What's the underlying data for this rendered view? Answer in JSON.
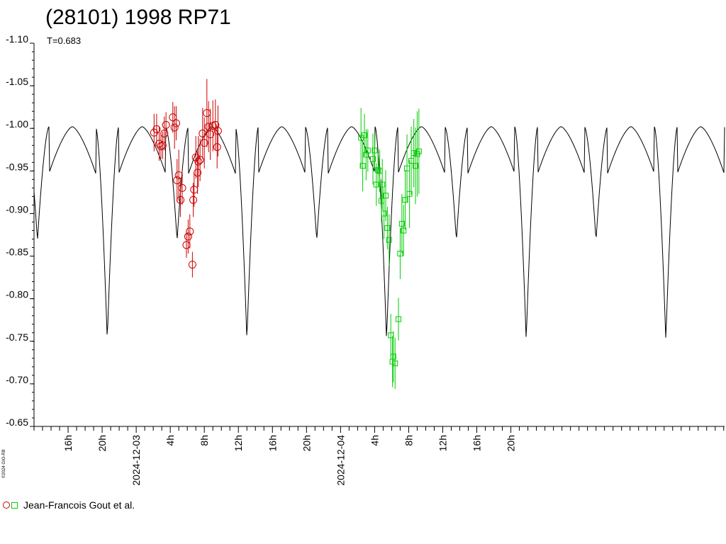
{
  "chart_data": {
    "type": "scatter",
    "title": "(28101) 1998 RP71",
    "subtitle": "T=0.683",
    "copyright": "©2024 GIO-RB",
    "ylim": [
      -1.1,
      -0.65
    ],
    "y_inverted": true,
    "yticks": [
      "-1.10",
      "-1.05",
      "-1.00",
      "-0.95",
      "-0.90",
      "-0.85",
      "-0.80",
      "-0.75",
      "-0.70",
      "-0.65"
    ],
    "xlim_hours": [
      12.0,
      93.1
    ],
    "xticks": [
      {
        "h": 16,
        "label": "16h"
      },
      {
        "h": 20,
        "label": "20h"
      },
      {
        "h": 24,
        "label": "2024-12-03"
      },
      {
        "h": 28,
        "label": "4h"
      },
      {
        "h": 32,
        "label": "8h"
      },
      {
        "h": 36,
        "label": "12h"
      },
      {
        "h": 40,
        "label": "16h"
      },
      {
        "h": 44,
        "label": "20h"
      },
      {
        "h": 48,
        "label": "2024-12-04"
      },
      {
        "h": 52,
        "label": "4h"
      },
      {
        "h": 56,
        "label": "8h"
      },
      {
        "h": 60,
        "label": "12h"
      },
      {
        "h": 64,
        "label": "16h"
      },
      {
        "h": 68,
        "label": "20h"
      }
    ],
    "model": {
      "period_hours": 16.4,
      "max_mag": -1.002,
      "min_deep": -0.751,
      "min_shallow": -0.868,
      "deep_min_hours": [
        20.6,
        37.0,
        53.4
      ],
      "shallow_min_hours": [
        12.4,
        28.8,
        45.2,
        61.6
      ]
    },
    "legend": "Jean-Francois Gout et al.",
    "series": [
      {
        "marker": "circle",
        "color": "#cc0000",
        "points": [
          [
            26.1,
            -0.995,
            0.022
          ],
          [
            26.4,
            -0.999,
            0.018
          ],
          [
            26.7,
            -0.982,
            0.02
          ],
          [
            26.9,
            -0.979,
            0.015
          ],
          [
            27.1,
            -0.98,
            0.016
          ],
          [
            27.3,
            -0.994,
            0.02
          ],
          [
            27.5,
            -1.004,
            0.015
          ],
          [
            28.3,
            -1.013,
            0.018
          ],
          [
            28.5,
            -1.001,
            0.025
          ],
          [
            28.7,
            -1.006,
            0.02
          ],
          [
            28.8,
            -0.939,
            0.025
          ],
          [
            29.0,
            -0.945,
            0.03
          ],
          [
            29.2,
            -0.916,
            0.02
          ],
          [
            29.4,
            -0.93,
            0.02
          ],
          [
            29.9,
            -0.863,
            0.015
          ],
          [
            30.1,
            -0.873,
            0.02
          ],
          [
            30.3,
            -0.879,
            0.02
          ],
          [
            30.6,
            -0.84,
            0.015
          ],
          [
            30.7,
            -0.916,
            0.02
          ],
          [
            30.8,
            -0.928,
            0.02
          ],
          [
            31.0,
            -0.966,
            0.025
          ],
          [
            31.2,
            -0.948,
            0.025
          ],
          [
            31.3,
            -0.961,
            0.03
          ],
          [
            31.5,
            -0.963,
            0.025
          ],
          [
            31.8,
            -0.994,
            0.03
          ],
          [
            32.0,
            -0.983,
            0.03
          ],
          [
            32.3,
            -1.018,
            0.04
          ],
          [
            32.5,
            -1.002,
            0.03
          ],
          [
            32.7,
            -0.993,
            0.03
          ],
          [
            33.0,
            -1.003,
            0.03
          ],
          [
            33.3,
            -1.004,
            0.03
          ],
          [
            33.5,
            -0.978,
            0.025
          ],
          [
            33.6,
            -0.997,
            0.03
          ]
        ]
      },
      {
        "marker": "square",
        "color": "#00cc00",
        "points": [
          [
            50.4,
            -0.989,
            0.035
          ],
          [
            50.6,
            -0.956,
            0.03
          ],
          [
            50.8,
            -0.992,
            0.025
          ],
          [
            51.0,
            -0.969,
            0.03
          ],
          [
            51.2,
            -0.974,
            0.025
          ],
          [
            51.8,
            -0.964,
            0.03
          ],
          [
            52.0,
            -0.974,
            0.02
          ],
          [
            52.2,
            -0.934,
            0.025
          ],
          [
            52.4,
            -0.951,
            0.02
          ],
          [
            52.6,
            -0.95,
            0.025
          ],
          [
            52.8,
            -0.915,
            0.025
          ],
          [
            52.9,
            -0.934,
            0.03
          ],
          [
            53.1,
            -0.9,
            0.03
          ],
          [
            53.3,
            -0.921,
            0.03
          ],
          [
            53.5,
            -0.883,
            0.025
          ],
          [
            53.7,
            -0.869,
            0.03
          ],
          [
            53.9,
            -0.757,
            0.025
          ],
          [
            54.1,
            -0.726,
            0.03
          ],
          [
            54.2,
            -0.732,
            0.03
          ],
          [
            54.4,
            -0.724,
            0.03
          ],
          [
            54.8,
            -0.776,
            0.025
          ],
          [
            55.0,
            -0.853,
            0.03
          ],
          [
            55.2,
            -0.888,
            0.035
          ],
          [
            55.4,
            -0.88,
            0.03
          ],
          [
            55.6,
            -0.916,
            0.035
          ],
          [
            55.8,
            -0.953,
            0.04
          ],
          [
            56.1,
            -0.923,
            0.04
          ],
          [
            56.3,
            -0.962,
            0.04
          ],
          [
            56.6,
            -0.971,
            0.04
          ],
          [
            56.8,
            -0.956,
            0.045
          ],
          [
            57.0,
            -0.97,
            0.05
          ],
          [
            57.2,
            -0.973,
            0.05
          ]
        ]
      }
    ]
  }
}
